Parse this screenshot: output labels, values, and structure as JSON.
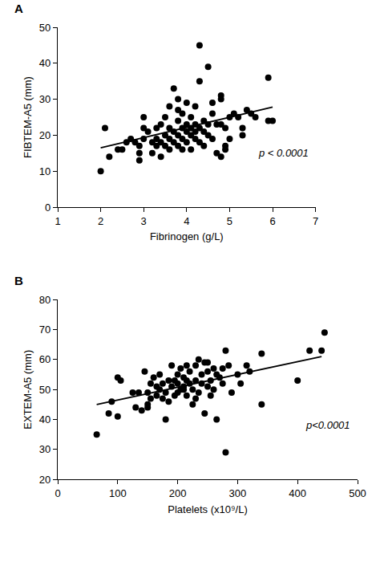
{
  "chart_data": [
    {
      "type": "scatter",
      "title": "A",
      "x_label": "Fibrinogen (g/L)",
      "y_label": "FIBTEM-A5 (mm)",
      "annotations": [
        "p < 0.0001"
      ],
      "xlim": [
        1,
        7
      ],
      "xticks": [
        1,
        2,
        3,
        4,
        5,
        6,
        7
      ],
      "ylim": [
        0,
        50
      ],
      "yticks": [
        0,
        10,
        20,
        30,
        40,
        50
      ],
      "grid": false,
      "series": [
        {
          "type": "scatter",
          "marker": "circle",
          "color": "#000000",
          "x": [
            2.0,
            2.1,
            2.2,
            2.4,
            2.5,
            2.6,
            2.7,
            2.9,
            2.9,
            2.9,
            3.0,
            3.0,
            3.1,
            3.2,
            3.2,
            3.3,
            3.3,
            3.4,
            3.4,
            3.4,
            3.5,
            3.5,
            3.5,
            3.6,
            3.6,
            3.6,
            3.6,
            3.7,
            3.7,
            3.7,
            3.8,
            3.8,
            3.8,
            3.8,
            3.9,
            3.9,
            3.9,
            3.9,
            4.0,
            4.0,
            4.0,
            4.0,
            4.1,
            4.1,
            4.1,
            4.1,
            4.2,
            4.2,
            4.2,
            4.2,
            4.3,
            4.3,
            4.3,
            4.3,
            4.4,
            4.4,
            4.4,
            4.5,
            4.5,
            4.5,
            4.6,
            4.6,
            4.6,
            4.7,
            4.7,
            4.8,
            4.8,
            4.8,
            4.8,
            4.9,
            4.9,
            5.0,
            5.0,
            5.1,
            5.2,
            5.3,
            5.4,
            5.5,
            5.6,
            5.9,
            5.9,
            6.0,
            3.0,
            3.3,
            3.8,
            2.8,
            4.9,
            5.3
          ],
          "values": [
            10,
            22,
            14,
            16,
            16,
            18,
            19,
            15,
            13,
            17,
            25,
            19,
            21,
            18,
            15,
            22,
            19,
            23,
            14,
            18,
            25,
            20,
            17,
            28,
            22,
            19,
            16,
            33,
            21,
            18,
            27,
            24,
            20,
            17,
            26,
            22,
            19,
            16,
            29,
            23,
            21,
            18,
            25,
            22,
            20,
            16,
            28,
            23,
            21,
            19,
            45,
            35,
            22,
            18,
            24,
            21,
            17,
            39,
            23,
            20,
            29,
            26,
            19,
            23,
            15,
            30,
            31,
            23,
            14,
            22,
            16,
            19,
            25,
            26,
            25,
            20,
            27,
            26,
            25,
            36,
            24,
            24,
            22,
            17,
            30,
            18,
            17,
            22
          ]
        },
        {
          "type": "line",
          "line_style": "solid",
          "color": "#000000",
          "x": [
            2,
            6
          ],
          "values": [
            16.5,
            27.8
          ]
        }
      ]
    },
    {
      "type": "scatter",
      "title": "B",
      "x_label": "Platelets (x10⁹/L)",
      "y_label": "EXTEM-A5 (mm)",
      "annotations": [
        "p<0.0001"
      ],
      "xlim": [
        0,
        500
      ],
      "xticks": [
        0,
        100,
        200,
        300,
        400,
        500
      ],
      "ylim": [
        20,
        80
      ],
      "yticks": [
        20,
        30,
        40,
        50,
        60,
        70,
        80
      ],
      "grid": false,
      "series": [
        {
          "type": "scatter",
          "marker": "circle",
          "color": "#000000",
          "x": [
            65,
            85,
            90,
            100,
            100,
            105,
            125,
            130,
            135,
            140,
            145,
            150,
            150,
            155,
            155,
            160,
            165,
            165,
            170,
            170,
            175,
            180,
            180,
            185,
            185,
            190,
            190,
            195,
            195,
            200,
            200,
            205,
            205,
            210,
            210,
            215,
            215,
            220,
            220,
            225,
            225,
            230,
            230,
            235,
            235,
            240,
            240,
            245,
            245,
            250,
            250,
            255,
            255,
            260,
            260,
            265,
            265,
            270,
            275,
            275,
            280,
            280,
            285,
            290,
            300,
            305,
            315,
            320,
            340,
            340,
            400,
            420,
            440,
            445,
            150,
            175,
            200,
            215,
            230,
            250,
            210
          ],
          "values": [
            35,
            42,
            46,
            41,
            54,
            53,
            49,
            44,
            49,
            43,
            56,
            49,
            44,
            52,
            47,
            54,
            48,
            51,
            55,
            50,
            52,
            40,
            49,
            53,
            46,
            51,
            58,
            48,
            53,
            52,
            55,
            50,
            57,
            51,
            54,
            58,
            48,
            52,
            56,
            50,
            45,
            53,
            58,
            60,
            49,
            55,
            52,
            59,
            42,
            51,
            56,
            48,
            53,
            57,
            50,
            55,
            40,
            54,
            52,
            57,
            63,
            29,
            58,
            49,
            55,
            52,
            58,
            56,
            62,
            45,
            53,
            63,
            63,
            69,
            45,
            47,
            49,
            53,
            47,
            59,
            50
          ]
        },
        {
          "type": "line",
          "line_style": "solid",
          "color": "#000000",
          "x": [
            65,
            440
          ],
          "values": [
            45,
            61
          ]
        }
      ]
    }
  ]
}
